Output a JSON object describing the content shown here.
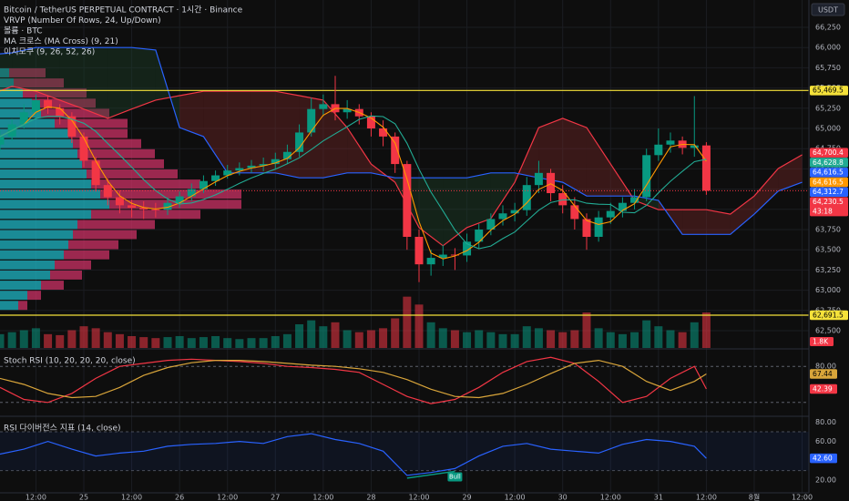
{
  "chart_data": [
    {
      "type": "candlestick",
      "title": "Bitcoin / TetherUS PERPETUAL CONTRACT · 1시간 · Binance",
      "indicators": [
        "VRVP (Number Of Rows, 24, Up/Down)",
        "볼륨 · BTC",
        "MA 크로스 (MA Cross) (9, 21)",
        "이치모쿠 (9, 26, 52, 26)"
      ],
      "axis_unit": "USDT",
      "x": [
        3,
        6,
        9,
        12,
        15,
        18,
        21,
        24,
        27,
        30,
        33,
        36,
        39,
        42,
        45,
        48,
        51,
        54,
        57,
        60,
        63,
        66,
        69,
        72,
        75,
        78,
        81,
        84,
        87,
        90,
        93,
        96,
        99,
        102,
        105,
        108,
        111,
        114,
        117,
        120,
        123,
        126,
        129,
        132,
        135,
        138,
        141,
        144,
        147,
        150,
        153,
        156,
        159,
        162,
        165,
        168,
        171,
        174,
        177,
        180
      ],
      "open": [
        64800,
        64900,
        65050,
        65200,
        65350,
        65250,
        65150,
        64900,
        64600,
        64300,
        64150,
        64050,
        64020,
        64000,
        63995,
        64080,
        64160,
        64250,
        64350,
        64420,
        64480,
        64510,
        64540,
        64560,
        64620,
        64710,
        64950,
        65240,
        65300,
        65200,
        65240,
        65150,
        65000,
        64900,
        64560,
        63660,
        63320,
        63400,
        63440,
        63430,
        63600,
        63750,
        63880,
        63950,
        63990,
        64300,
        64450,
        64200,
        64050,
        63880,
        63660,
        63900,
        63980,
        64080,
        64150,
        64670,
        64800,
        64850,
        64760,
        64790
      ],
      "high": [
        64980,
        65120,
        65300,
        65420,
        65410,
        65300,
        65200,
        64950,
        64650,
        64380,
        64230,
        64120,
        64100,
        64080,
        64150,
        64220,
        64320,
        64420,
        64480,
        64550,
        64580,
        64610,
        64640,
        64700,
        64800,
        65050,
        65380,
        65420,
        65650,
        65350,
        65300,
        65200,
        65100,
        64950,
        64600,
        63750,
        63500,
        63560,
        63520,
        63700,
        63820,
        63950,
        64050,
        64080,
        64400,
        64600,
        64500,
        64300,
        64150,
        63950,
        63980,
        64080,
        64150,
        64250,
        64750,
        65000,
        64950,
        64900,
        65400,
        64830
      ],
      "low": [
        64720,
        64850,
        65000,
        65150,
        65180,
        65050,
        64820,
        64520,
        64220,
        64050,
        63950,
        63900,
        63880,
        63900,
        63930,
        64020,
        64100,
        64200,
        64290,
        64380,
        64420,
        64450,
        64470,
        64500,
        64560,
        64650,
        64900,
        65150,
        65100,
        65120,
        65050,
        64900,
        64780,
        64450,
        63500,
        63100,
        63180,
        63300,
        63250,
        63350,
        63520,
        63680,
        63800,
        63850,
        63920,
        64200,
        64100,
        63950,
        63750,
        63500,
        63600,
        63820,
        63900,
        64000,
        64100,
        64600,
        64700,
        64680,
        64650,
        64180
      ],
      "close": [
        64900,
        65050,
        65200,
        65350,
        65250,
        65150,
        64900,
        64600,
        64300,
        64150,
        64050,
        64020,
        64000,
        63995,
        64080,
        64160,
        64250,
        64350,
        64420,
        64480,
        64510,
        64540,
        64560,
        64620,
        64710,
        64950,
        65240,
        65300,
        65200,
        65240,
        65150,
        65000,
        64900,
        64560,
        63660,
        63320,
        63400,
        63440,
        63430,
        63600,
        63750,
        63880,
        63950,
        63990,
        64300,
        64450,
        64200,
        64050,
        63880,
        63660,
        63900,
        63980,
        64080,
        64150,
        64670,
        64800,
        64850,
        64760,
        64790,
        64230.5
      ],
      "up_color": "#089981",
      "down_color": "#f23645",
      "xlim": [
        3,
        205.7
      ],
      "xticks": [
        {
          "value": 12,
          "label": "12:00"
        },
        {
          "value": 24,
          "label": "25"
        },
        {
          "value": 36,
          "label": "12:00"
        },
        {
          "value": 48,
          "label": "26"
        },
        {
          "value": 60,
          "label": "12:00"
        },
        {
          "value": 72,
          "label": "27"
        },
        {
          "value": 84,
          "label": "12:00"
        },
        {
          "value": 96,
          "label": "28"
        },
        {
          "value": 108,
          "label": "12:00"
        },
        {
          "value": 120,
          "label": "29"
        },
        {
          "value": 132,
          "label": "12:00"
        },
        {
          "value": 144,
          "label": "30"
        },
        {
          "value": 156,
          "label": "12:00"
        },
        {
          "value": 168,
          "label": "31"
        },
        {
          "value": 180,
          "label": "12:00"
        },
        {
          "value": 192,
          "label": "8월"
        },
        {
          "value": 204,
          "label": "12:00"
        }
      ],
      "ylim": [
        62286,
        66588
      ],
      "yticks": [
        {
          "value": 62500,
          "label": "62,500"
        },
        {
          "value": 62750,
          "label": "62,750"
        },
        {
          "value": 63000,
          "label": "63,000"
        },
        {
          "value": 63250,
          "label": "63,250"
        },
        {
          "value": 63500,
          "label": "63,500"
        },
        {
          "value": 63750,
          "label": "63,750"
        },
        {
          "value": 64000,
          "label": "64,000"
        },
        {
          "value": 64250,
          "label": "64,250"
        },
        {
          "value": 64500,
          "label": "64,500"
        },
        {
          "value": 64750,
          "label": "64,750"
        },
        {
          "value": 65000,
          "label": "65,000"
        },
        {
          "value": 65250,
          "label": "65,250"
        },
        {
          "value": 65500,
          "label": "65,500"
        },
        {
          "value": 65750,
          "label": "65,750"
        },
        {
          "value": 66000,
          "label": "66,000"
        },
        {
          "value": 66250,
          "label": "66,250"
        }
      ],
      "grid": true,
      "volume": {
        "values": [
          700,
          800,
          900,
          1000,
          700,
          650,
          900,
          1100,
          1000,
          800,
          700,
          600,
          550,
          500,
          550,
          600,
          500,
          550,
          600,
          500,
          450,
          500,
          500,
          600,
          700,
          1200,
          1400,
          1100,
          1300,
          900,
          800,
          900,
          1000,
          1500,
          2600,
          2200,
          1300,
          1000,
          900,
          800,
          900,
          800,
          700,
          700,
          1100,
          1000,
          900,
          800,
          900,
          1800,
          1000,
          800,
          700,
          800,
          1400,
          1100,
          900,
          800,
          1300,
          1800
        ],
        "vlim": [
          0,
          3000
        ],
        "last_label": "1.8K"
      },
      "volume_profile": {
        "price_start": 62750,
        "row_height": 125,
        "up": [
          20,
          30,
          45,
          55,
          60,
          70,
          75,
          80,
          85,
          100,
          120,
          110,
          100,
          95,
          90,
          85,
          80,
          75,
          60,
          45,
          35,
          25,
          15,
          10
        ],
        "down": [
          10,
          15,
          25,
          35,
          40,
          50,
          55,
          70,
          85,
          120,
          145,
          155,
          120,
          100,
          90,
          85,
          75,
          65,
          80,
          75,
          70,
          70,
          55,
          40
        ],
        "xlim": [
          0,
          300
        ],
        "up_color": "#1fb5c4",
        "down_color": "#d8336b"
      },
      "moving_averages": [
        {
          "color": "#ff9800",
          "values": [
            64900,
            64975,
            65050,
            65200,
            65267,
            65250,
            65100,
            64883,
            64600,
            64350,
            64167,
            64073,
            64023,
            64005,
            64025,
            64078,
            64163,
            64253,
            64340,
            64417,
            64470,
            64510,
            64537,
            64573,
            64630,
            64760,
            64967,
            65163,
            65247,
            65247,
            65197,
            65130,
            65017,
            64820,
            64373,
            63847,
            63460,
            63387,
            63423,
            63490,
            63593,
            63743,
            63860,
            63940,
            64080,
            64247,
            64317,
            64233,
            64043,
            63863,
            63813,
            63847,
            63987,
            64070,
            64300,
            64540,
            64773,
            64803,
            64800,
            64593
          ]
        },
        {
          "color": "#22ab94",
          "values": [
            64900,
            64975,
            65050,
            65125,
            65150,
            65150,
            65114,
            65064,
            64964,
            64814,
            64671,
            64521,
            64368,
            64231,
            64128,
            64065,
            64079,
            64122,
            64179,
            64248,
            64321,
            64387,
            64444,
            64497,
            64563,
            64637,
            64739,
            64846,
            64935,
            65021,
            65113,
            65154,
            65147,
            65057,
            64816,
            64497,
            64213,
            63980,
            63744,
            63573,
            63514,
            63546,
            63639,
            63720,
            63856,
            63989,
            64083,
            64117,
            64117,
            64076,
            64063,
            64060,
            63964,
            63957,
            64049,
            64204,
            64347,
            64470,
            64589,
            64620
          ]
        }
      ],
      "ichimoku": {
        "x": [
          0,
          6,
          12,
          18,
          24,
          30,
          36,
          42,
          48,
          54,
          60,
          66,
          72,
          78,
          84,
          90,
          96,
          102,
          108,
          114,
          120,
          126,
          132,
          138,
          144,
          150,
          156,
          162,
          168,
          174,
          180,
          186,
          192,
          198,
          204
        ],
        "span_a": {
          "color": "#f23645",
          "values": [
            65405,
            65520,
            65460,
            65350,
            65240,
            65125,
            65240,
            65350,
            65405,
            65460,
            65460,
            65460,
            65460,
            65405,
            65350,
            65010,
            64560,
            64335,
            63775,
            63550,
            63775,
            63885,
            64335,
            65010,
            65125,
            65010,
            64560,
            64110,
            63995,
            63995,
            63995,
            63940,
            64165,
            64505,
            64675
          ]
        },
        "span_b": {
          "color": "#2962ff",
          "values": [
            65910,
            65935,
            66000,
            66000,
            66000,
            66000,
            66000,
            65970,
            65010,
            64900,
            64450,
            64450,
            64450,
            64390,
            64390,
            64450,
            64450,
            64390,
            64390,
            64390,
            64390,
            64450,
            64450,
            64390,
            64335,
            64165,
            64165,
            64165,
            64110,
            63690,
            63690,
            63690,
            63940,
            64225,
            64335
          ]
        }
      },
      "hlines": [
        {
          "value": 65469.5,
          "label": "65,469.5"
        },
        {
          "value": 62691.5,
          "label": "62,691.5"
        }
      ],
      "hline_color": "#f5e23a",
      "last_price": {
        "value": 64230.5,
        "label": "64,230.5",
        "countdown": "43:18"
      },
      "price_labels": [
        {
          "value": 64700.4,
          "label": "64,700.4",
          "color": "#f23645"
        },
        {
          "value": 64628.8,
          "label": "64,628.8",
          "color": "#22ab94"
        },
        {
          "value": 64616.5,
          "label": "64,616.5",
          "color": "#2962ff"
        },
        {
          "value": 64616.5,
          "label": "64,616.5",
          "color": "#ff9800"
        },
        {
          "value": 64312.7,
          "label": "64,312.7",
          "color": "#2962ff"
        }
      ]
    },
    {
      "type": "line",
      "title": "Stoch RSI (10, 20, 20, 20, close)",
      "x": [
        3,
        9,
        15,
        21,
        27,
        33,
        39,
        45,
        51,
        57,
        63,
        69,
        75,
        81,
        87,
        93,
        99,
        105,
        111,
        117,
        123,
        129,
        135,
        141,
        147,
        153,
        159,
        165,
        171,
        177,
        180
      ],
      "series": [
        {
          "color": "#f23645",
          "values": [
            45,
            25,
            20,
            35,
            60,
            80,
            85,
            90,
            92,
            90,
            88,
            85,
            80,
            78,
            75,
            70,
            50,
            30,
            18,
            25,
            45,
            70,
            88,
            95,
            85,
            55,
            20,
            30,
            60,
            80,
            42.39
          ]
        },
        {
          "color": "#d9a53a",
          "values": [
            60,
            50,
            35,
            28,
            30,
            45,
            65,
            78,
            86,
            90,
            90,
            88,
            85,
            82,
            80,
            76,
            70,
            58,
            42,
            30,
            28,
            35,
            50,
            68,
            85,
            90,
            80,
            55,
            40,
            55,
            67.44
          ]
        }
      ],
      "ylim": [
        0,
        100
      ],
      "yticks": [
        {
          "value": 80,
          "label": "80.00"
        }
      ],
      "levels": [
        80,
        20
      ]
    },
    {
      "type": "line",
      "title": "RSI 다이버전스 지표 (14, close)",
      "x": [
        3,
        9,
        15,
        21,
        27,
        33,
        39,
        45,
        51,
        57,
        63,
        69,
        75,
        81,
        87,
        93,
        99,
        105,
        111,
        117,
        123,
        129,
        135,
        141,
        147,
        153,
        159,
        165,
        171,
        177,
        180
      ],
      "series": [
        {
          "color": "#2962ff",
          "values": [
            47,
            52,
            60,
            52,
            45,
            48,
            50,
            55,
            57,
            58,
            60,
            58,
            65,
            68,
            62,
            58,
            50,
            25,
            28,
            32,
            45,
            55,
            58,
            52,
            50,
            48,
            57,
            62,
            60,
            55,
            42.6
          ]
        }
      ],
      "last_label": "42.60",
      "ylim": [
        8,
        85
      ],
      "yticks": [
        {
          "value": 80,
          "label": "80.00"
        },
        {
          "value": 60,
          "label": "60.00"
        },
        {
          "value": 20,
          "label": "20.00"
        }
      ],
      "levels": [
        70,
        30
      ],
      "annotations": [
        {
          "text": "Bull",
          "x": 117,
          "from_x": 105,
          "color": "#089981"
        }
      ]
    }
  ]
}
